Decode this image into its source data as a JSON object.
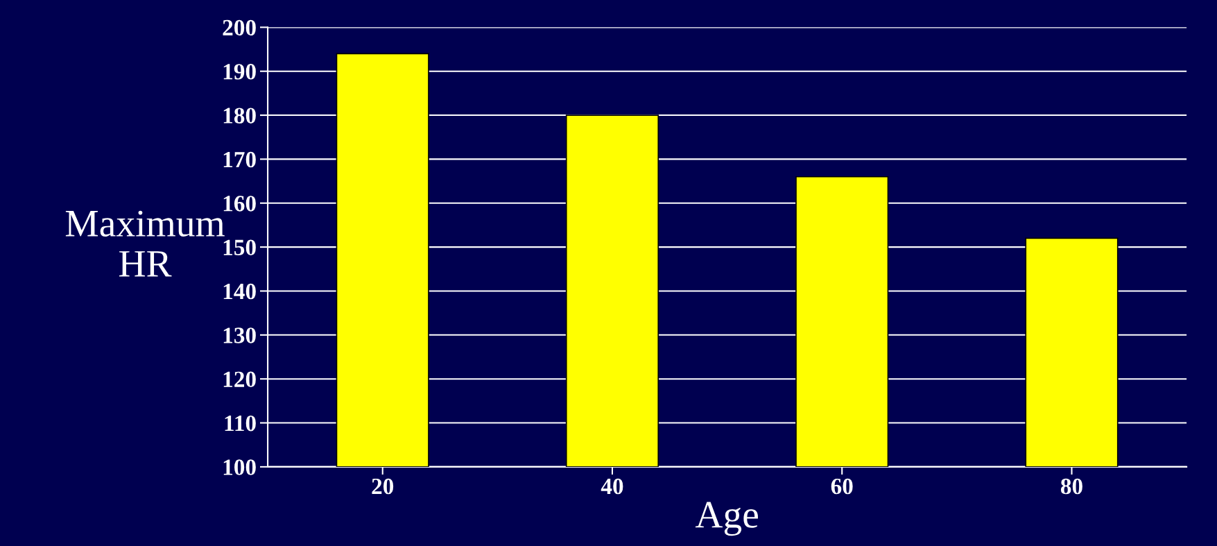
{
  "chart_data": {
    "type": "bar",
    "xlabel": "Age",
    "ylabel": "Maximum\nHR",
    "categories": [
      "20",
      "40",
      "60",
      "80"
    ],
    "values": [
      194,
      180,
      166,
      152
    ],
    "color": "#ffff00",
    "ylim": [
      100,
      200
    ],
    "yticks": [
      100,
      110,
      120,
      130,
      140,
      150,
      160,
      170,
      180,
      190,
      200
    ],
    "grid": "y"
  }
}
